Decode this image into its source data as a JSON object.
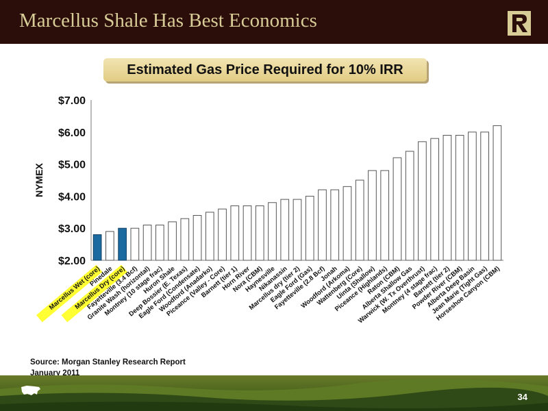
{
  "slide": {
    "title": "Marcellus Shale Has Best Economics",
    "caption": "Estimated Gas Price Required for 10% IRR",
    "source_line1": "Source:  Morgan Stanley Research Report",
    "source_line2": "January 2011",
    "page_number": "34",
    "logo_letter": "R",
    "colors": {
      "header_bg": "#2b0e0a",
      "title_text": "#d8cc97",
      "caption_bg": "#e8d79a",
      "highlight": "#ffff33",
      "bar_highlight": "#1b6aa0",
      "bar_default": "#ffffff"
    }
  },
  "chart_data": {
    "type": "bar",
    "ylabel": "NYMEX",
    "ylim": [
      2.0,
      7.0
    ],
    "yticks": [
      "$2.00",
      "$3.00",
      "$4.00",
      "$5.00",
      "$6.00",
      "$7.00"
    ],
    "grid": false,
    "categories": [
      "Marcellus Wet (core)",
      "Pinedale",
      "Marcellus Dry (core)",
      "Fayetteville (3.4 Bcf)",
      "Granite Wash (horizontal)",
      "Montney (10 stage frac)",
      "Huron Shale",
      "Deep Bossier (E. Texas)",
      "Eagle Ford (Condensate)",
      "Woodford (Anadarko)",
      "Piceance (Valley - Core)",
      "Barnett (tier 1)",
      "Horn River",
      "Nora (CBM)",
      "Haynesville",
      "Nikanassin",
      "Marcellus dry (tier 2)",
      "Eagle Ford (Gas)",
      "Fayetteville (2.8 Bcf)",
      "Jonah",
      "Woodford (Arkoma)",
      "Wattenberg (Core)",
      "Uinta (Shallow)",
      "Piceance (Highlands)",
      "Raton (CBM)",
      "Alberta Shallow Gas",
      "Warwick (W. Tx Overthrust)",
      "Montney (4 stage frac)",
      "Barnett (tier 2)",
      "Powder River (CBM)",
      "Alberta Deep Basin",
      "Jean Marie (Tight Gas)",
      "Horseshoe Canyon (CBM)"
    ],
    "values": [
      2.8,
      2.9,
      3.0,
      3.0,
      3.1,
      3.1,
      3.2,
      3.3,
      3.4,
      3.5,
      3.6,
      3.7,
      3.7,
      3.7,
      3.8,
      3.9,
      3.9,
      4.0,
      4.2,
      4.2,
      4.3,
      4.5,
      4.8,
      4.8,
      5.2,
      5.4,
      5.7,
      5.8,
      5.9,
      5.9,
      6.0,
      6.0,
      6.2
    ],
    "highlighted": [
      "Marcellus Wet (core)",
      "Marcellus Dry (core)"
    ]
  }
}
